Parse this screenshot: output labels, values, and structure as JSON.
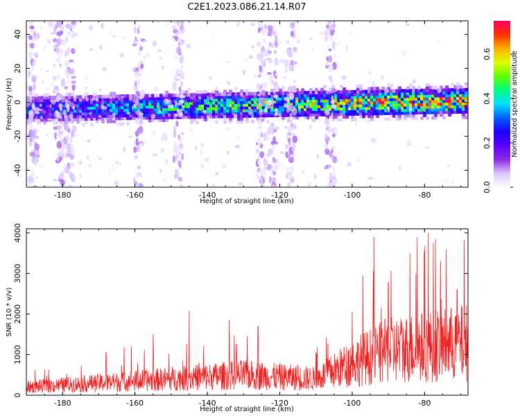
{
  "figure_title": "C2E1.2023.086.21.14.R07",
  "chart_data": [
    {
      "type": "heatmap",
      "xlabel": "Height of straight line (km)",
      "ylabel": "Frequency (Hz)",
      "xlim": [
        -190,
        -68
      ],
      "ylim": [
        -50,
        48
      ],
      "x_ticks": [
        -180,
        -160,
        -140,
        -120,
        -100,
        -80
      ],
      "y_ticks": [
        -40,
        -20,
        0,
        20,
        40
      ],
      "colorbar": {
        "label": "Normalized spectral amplitude",
        "range": [
          0,
          0.75
        ],
        "ticks": [
          0.0,
          0.2,
          0.4,
          0.6
        ],
        "colors": [
          "#ffffff",
          "#d9c6ff",
          "#8a2be2",
          "#5a00ff",
          "#1a00ff",
          "#0060ff",
          "#00e0ff",
          "#00ff80",
          "#60ff00",
          "#e0ff00",
          "#ffb000",
          "#ff3000",
          "#ff0060"
        ]
      },
      "band": {
        "center_freq_at_xlim": [
          -4,
          1
        ],
        "half_width_hz": 7,
        "amplitude_trend_at_xlim": [
          0.3,
          0.7
        ]
      },
      "streaks_x": [
        -188,
        -181,
        -178,
        -159,
        -148,
        -125,
        -122,
        -117,
        -106
      ]
    },
    {
      "type": "line",
      "xlabel": "Height of straight line (km)",
      "ylabel": "SNR (10 * v/v)",
      "xlim": [
        -190,
        -68
      ],
      "ylim": [
        0,
        4100
      ],
      "x_ticks": [
        -180,
        -160,
        -140,
        -120,
        -100,
        -80
      ],
      "y_ticks": [
        0,
        1000,
        2000,
        3000,
        4000
      ],
      "color": "#ee2222",
      "peaks": [
        {
          "x": -168,
          "y": 1050
        },
        {
          "x": -163,
          "y": 1180
        },
        {
          "x": -161,
          "y": 1200
        },
        {
          "x": -155,
          "y": 1500
        },
        {
          "x": -145,
          "y": 2080
        },
        {
          "x": -141,
          "y": 1220
        },
        {
          "x": -134,
          "y": 1850
        },
        {
          "x": -132,
          "y": 1250
        },
        {
          "x": -126,
          "y": 1700
        },
        {
          "x": -110,
          "y": 1060
        },
        {
          "x": -100,
          "y": 2050
        },
        {
          "x": -97,
          "y": 2950
        },
        {
          "x": -94,
          "y": 3900
        },
        {
          "x": -90,
          "y": 2780
        },
        {
          "x": -84,
          "y": 3500
        },
        {
          "x": -82,
          "y": 3900
        },
        {
          "x": -79,
          "y": 4000
        },
        {
          "x": -77,
          "y": 3850
        },
        {
          "x": -74,
          "y": 3600
        },
        {
          "x": -71,
          "y": 2600
        }
      ],
      "baseline_trend": [
        {
          "x": -190,
          "y": 200
        },
        {
          "x": -160,
          "y": 350
        },
        {
          "x": -130,
          "y": 500
        },
        {
          "x": -110,
          "y": 400
        },
        {
          "x": -100,
          "y": 800
        },
        {
          "x": -90,
          "y": 1100
        },
        {
          "x": -68,
          "y": 1300
        }
      ]
    }
  ]
}
